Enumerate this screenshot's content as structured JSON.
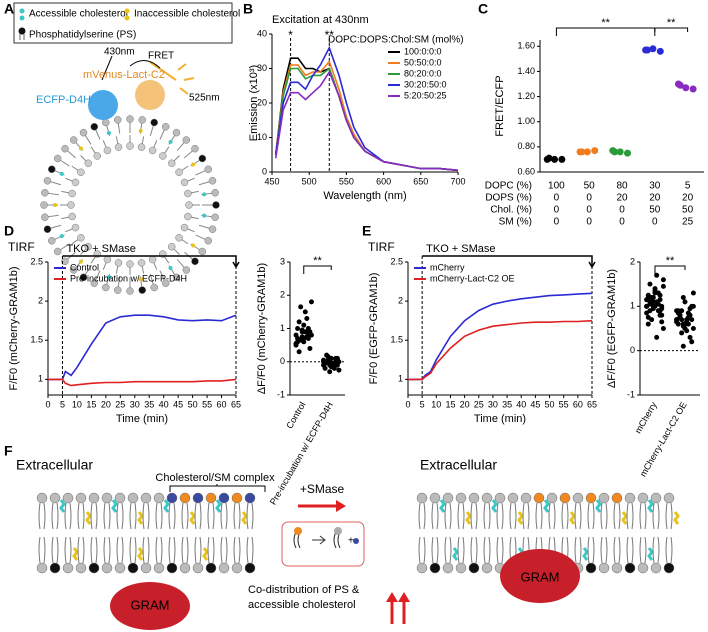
{
  "panel_labels": [
    "A",
    "B",
    "C",
    "D",
    "E",
    "F"
  ],
  "panel_a": {
    "legend": [
      "Accessible cholesterol",
      "Inaccessible cholesterol",
      "Phosphatidylserine (PS)"
    ],
    "labels": [
      "430nm",
      "FRET",
      "mVenus-Lact-C2",
      "525nm",
      "ECFP-D4H"
    ]
  },
  "chart_data": [
    {
      "type": "line",
      "title": "Excitation at 430nm",
      "xlabel": "Wavelength (nm)",
      "ylabel": "Emission (x10³)",
      "x": [
        455,
        465,
        475,
        485,
        495,
        505,
        515,
        527,
        540,
        550,
        560,
        575,
        600,
        625,
        650,
        675,
        700
      ],
      "xlim": [
        450,
        700
      ],
      "xticks": [
        450,
        500,
        550,
        600,
        650,
        700
      ],
      "ylim": [
        0,
        40
      ],
      "yticks": [
        0,
        10,
        20,
        30,
        40
      ],
      "legend": "upper right",
      "legend_title": "DOPC:DOPS:Chol:SM (mol%)",
      "peak_labels": [
        "*",
        "**"
      ],
      "series": [
        {
          "name": "100:0:0:0",
          "color": "#000000",
          "values": [
            5,
            24,
            33,
            33,
            30,
            30,
            29,
            30,
            22,
            15,
            10,
            6,
            3,
            2,
            1,
            1,
            0.5
          ]
        },
        {
          "name": "50:50:0:0",
          "color": "#f07c1f",
          "values": [
            5,
            23,
            31,
            31,
            28,
            29,
            29,
            32,
            24,
            16,
            11,
            6,
            3,
            2,
            1,
            1,
            0.5
          ]
        },
        {
          "name": "80:20:0:0",
          "color": "#2a9a3a",
          "values": [
            5,
            22,
            30,
            30,
            27,
            28,
            28,
            30,
            22,
            15,
            10,
            6,
            3,
            2,
            1,
            1,
            0.5
          ]
        },
        {
          "name": "30:20:50:0",
          "color": "#2b2bd6",
          "values": [
            5,
            20,
            26,
            26,
            24,
            28,
            31,
            36,
            28,
            20,
            13,
            7,
            3,
            2,
            1,
            1,
            0.5
          ]
        },
        {
          "name": "5:20:50:25",
          "color": "#8a2bbf",
          "values": [
            4,
            18,
            23,
            23,
            21,
            23,
            25,
            29,
            22,
            15,
            10,
            6,
            3,
            2,
            1,
            1,
            0.5
          ]
        }
      ]
    },
    {
      "type": "strip",
      "ylabel": "FRET/ECFP",
      "ylim": [
        0.6,
        1.65
      ],
      "yticks": [
        {
          "value": 0.6,
          "label": "0.60"
        },
        {
          "value": 0.8,
          "label": "0.80"
        },
        {
          "value": 1.0,
          "label": "1.00"
        },
        {
          "value": 1.2,
          "label": "1.20"
        },
        {
          "value": 1.4,
          "label": "1.40"
        },
        {
          "value": 1.6,
          "label": "1.60"
        }
      ],
      "significance": [
        "**",
        "**"
      ],
      "groups": [
        {
          "color": "#000000",
          "values": [
            0.7,
            0.7,
            0.7,
            0.71
          ]
        },
        {
          "color": "#f07c1f",
          "values": [
            0.76,
            0.76,
            0.77,
            0.76
          ]
        },
        {
          "color": "#2a9a3a",
          "values": [
            0.77,
            0.76,
            0.75,
            0.76
          ]
        },
        {
          "color": "#2b2bd6",
          "values": [
            1.57,
            1.58,
            1.56,
            1.57
          ]
        },
        {
          "color": "#8a2bbf",
          "values": [
            1.3,
            1.27,
            1.26,
            1.29
          ]
        }
      ],
      "table": [
        {
          "label": "DOPC (%)",
          "values": [
            100,
            50,
            80,
            30,
            5
          ]
        },
        {
          "label": "DOPS (%)",
          "values": [
            0,
            0,
            20,
            20,
            20
          ]
        },
        {
          "label": "Chol. (%)",
          "values": [
            0,
            0,
            0,
            50,
            50
          ]
        },
        {
          "label": "SM (%)",
          "values": [
            0,
            0,
            0,
            0,
            25
          ]
        }
      ]
    },
    {
      "type": "line",
      "note": "TIRF",
      "annotation": "TKO + SMase",
      "xlabel": "Time (min)",
      "ylabel": "F/F0 (mCherry-GRAM1b)",
      "x": [
        0,
        2,
        4,
        5,
        6,
        8,
        10,
        15,
        20,
        25,
        30,
        35,
        40,
        45,
        50,
        55,
        60,
        65
      ],
      "xlim": [
        0,
        65
      ],
      "xticks": [
        0,
        5,
        10,
        15,
        20,
        25,
        30,
        35,
        40,
        45,
        50,
        55,
        60,
        65
      ],
      "ylim": [
        0.8,
        2.5
      ],
      "yticks": [
        1,
        1.5,
        2,
        2.5
      ],
      "legend": "upper left",
      "series": [
        {
          "name": "Control",
          "color": "#2b2bd6",
          "values": [
            1,
            1,
            1,
            1,
            1.1,
            1.05,
            1.15,
            1.45,
            1.72,
            1.8,
            1.82,
            1.82,
            1.8,
            1.76,
            1.75,
            1.76,
            1.75,
            1.82
          ]
        },
        {
          "name": "Pre-incubation w/ ECFP-D4H",
          "color": "#e02020",
          "values": [
            1,
            1,
            1,
            1,
            0.95,
            0.92,
            0.93,
            0.95,
            0.96,
            0.96,
            0.97,
            0.97,
            0.97,
            0.97,
            0.97,
            0.98,
            0.98,
            1.0
          ]
        }
      ]
    },
    {
      "type": "strip",
      "ylabel": "ΔF/F0 (mCherry-GRAM1b)",
      "ylim": [
        -1,
        3
      ],
      "yticks": [
        -1,
        0,
        1,
        2,
        3
      ],
      "significance": [
        "**"
      ],
      "groups": [
        {
          "name": "Control",
          "color": "#000000",
          "values": [
            0.8,
            0.9,
            1.0,
            0.7,
            0.6,
            0.85,
            1.2,
            1.5,
            1.8,
            1.65,
            0.75,
            0.5,
            0.95,
            0.7,
            0.6,
            1.1,
            0.4,
            0.3,
            0.9,
            0.8,
            0.65,
            1.3,
            0.55,
            0.75,
            0.85,
            1.0,
            0.7,
            0.9
          ]
        },
        {
          "name": "Pre-incubation w/ ECFP-D4H",
          "color": "#000000",
          "values": [
            0.0,
            -0.1,
            0.05,
            -0.2,
            -0.15,
            0.1,
            0.0,
            -0.05,
            -0.25,
            0.15,
            -0.1,
            0.05,
            -0.3,
            0.0,
            -0.05,
            0.1,
            -0.1,
            0.2,
            -0.15,
            0.0,
            0.05,
            -0.2,
            -0.1,
            0.0,
            0.1,
            -0.05,
            -0.1,
            0.05
          ]
        }
      ]
    },
    {
      "type": "line",
      "note": "TIRF",
      "annotation": "TKO + SMase",
      "xlabel": "Time (min)",
      "ylabel": "F/F0 (EGFP-GRAM1b)",
      "x": [
        0,
        2,
        4,
        5,
        6,
        8,
        10,
        15,
        20,
        25,
        30,
        35,
        40,
        45,
        50,
        55,
        60,
        65
      ],
      "xlim": [
        0,
        65
      ],
      "xticks": [
        0,
        5,
        10,
        15,
        20,
        25,
        30,
        35,
        40,
        45,
        50,
        55,
        60,
        65
      ],
      "ylim": [
        0.8,
        2.5
      ],
      "yticks": [
        1,
        1.5,
        2,
        2.5
      ],
      "legend": "upper left",
      "series": [
        {
          "name": "mCherry",
          "color": "#2b2bd6",
          "values": [
            1,
            1,
            1,
            1,
            1.05,
            1.1,
            1.25,
            1.55,
            1.75,
            1.88,
            1.96,
            2.0,
            2.03,
            2.05,
            2.07,
            2.08,
            2.09,
            2.1
          ]
        },
        {
          "name": "mCherry-Lact-C2 OE",
          "color": "#e02020",
          "values": [
            1,
            1,
            1,
            1,
            1.03,
            1.08,
            1.2,
            1.4,
            1.55,
            1.63,
            1.68,
            1.7,
            1.72,
            1.73,
            1.73,
            1.74,
            1.74,
            1.75
          ]
        }
      ]
    },
    {
      "type": "strip",
      "ylabel": "ΔF/F0 (EGFP-GRAM1b)",
      "ylim": [
        -1,
        2
      ],
      "yticks": [
        -1,
        0,
        1,
        2
      ],
      "significance": [
        "**"
      ],
      "groups": [
        {
          "name": "mCherry",
          "color": "#000000",
          "values": [
            1.0,
            1.1,
            0.9,
            1.2,
            1.3,
            0.8,
            1.5,
            1.7,
            1.6,
            0.7,
            1.05,
            1.15,
            0.95,
            1.25,
            0.6,
            1.4,
            1.0,
            0.9,
            1.1,
            0.5,
            1.2,
            1.3,
            0.85,
            1.0,
            1.15,
            0.75,
            1.35,
            0.95,
            1.05,
            0.3,
            1.45,
            1.1,
            0.9,
            1.0,
            1.2,
            0.8,
            1.25,
            1.0,
            0.65,
            1.1
          ]
        },
        {
          "name": "mCherry-Lact-C2 OE",
          "color": "#000000",
          "values": [
            0.7,
            0.6,
            0.8,
            0.9,
            0.5,
            1.0,
            0.75,
            0.65,
            1.3,
            0.4,
            0.85,
            0.7,
            0.55,
            0.95,
            0.6,
            1.1,
            0.2,
            0.8,
            0.7,
            0.5,
            0.9,
            0.75,
            0.65,
            1.2,
            0.3,
            0.85,
            0.6,
            0.7,
            0.8,
            0.45,
            1.0,
            0.7,
            0.6,
            0.9,
            0.1
          ]
        }
      ]
    }
  ],
  "panel_f": {
    "extracellular": [
      "Extracellular",
      "Extracellular"
    ],
    "complex": "Cholesterol/SM complex",
    "treatment": "+SMase",
    "gram": [
      "GRAM",
      "GRAM"
    ],
    "note": [
      "Co-distribution of PS &",
      "accessible cholesterol"
    ]
  }
}
